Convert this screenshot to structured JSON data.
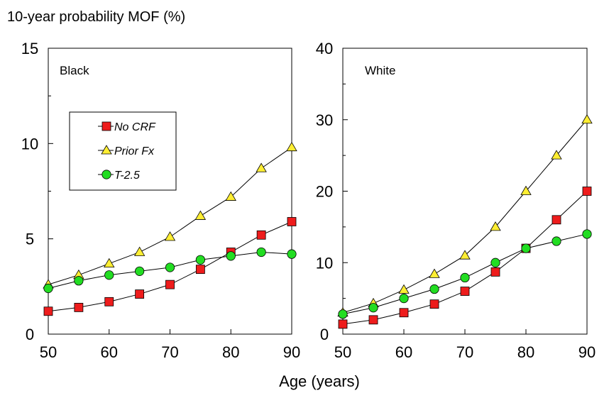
{
  "figure": {
    "y_title": "10-year probability MOF (%)",
    "x_title": "Age (years)"
  },
  "legend": {
    "entries": [
      "No CRF",
      "Prior Fx",
      "T-2.5"
    ]
  },
  "colors": {
    "No CRF": "#ee1c1c",
    "Prior Fx": "#ffee33",
    "T-2.5": "#22dd22",
    "line": "#000000"
  },
  "chart_data": [
    {
      "type": "line",
      "panel_label": "Black",
      "x": [
        50,
        55,
        60,
        65,
        70,
        75,
        80,
        85,
        90
      ],
      "xlim": [
        50,
        90
      ],
      "xticks": [
        50,
        60,
        70,
        80,
        90
      ],
      "ylim": [
        0,
        15
      ],
      "yticks": [
        0,
        5,
        10,
        15
      ],
      "series": [
        {
          "name": "No CRF",
          "marker": "square",
          "values": [
            1.2,
            1.4,
            1.7,
            2.1,
            2.6,
            3.4,
            4.3,
            5.2,
            5.9
          ]
        },
        {
          "name": "Prior Fx",
          "marker": "triangle",
          "values": [
            2.6,
            3.1,
            3.7,
            4.3,
            5.1,
            6.2,
            7.2,
            8.7,
            9.8
          ]
        },
        {
          "name": "T-2.5",
          "marker": "circle",
          "values": [
            2.4,
            2.8,
            3.1,
            3.3,
            3.5,
            3.9,
            4.1,
            4.3,
            4.2
          ]
        }
      ]
    },
    {
      "type": "line",
      "panel_label": "White",
      "x": [
        50,
        55,
        60,
        65,
        70,
        75,
        80,
        85,
        90
      ],
      "xlim": [
        50,
        90
      ],
      "xticks": [
        50,
        60,
        70,
        80,
        90
      ],
      "ylim": [
        0,
        40
      ],
      "yticks": [
        0,
        10,
        20,
        30,
        40
      ],
      "series": [
        {
          "name": "No CRF",
          "marker": "square",
          "values": [
            1.4,
            2.0,
            3.0,
            4.2,
            6.0,
            8.7,
            12.0,
            16.0,
            20.0
          ]
        },
        {
          "name": "Prior Fx",
          "marker": "triangle",
          "values": [
            3.0,
            4.3,
            6.2,
            8.4,
            11.0,
            15.0,
            20.0,
            25.0,
            30.0
          ]
        },
        {
          "name": "T-2.5",
          "marker": "circle",
          "values": [
            2.8,
            3.7,
            5.0,
            6.3,
            7.9,
            10.0,
            12.0,
            13.0,
            14.0
          ]
        }
      ]
    }
  ]
}
